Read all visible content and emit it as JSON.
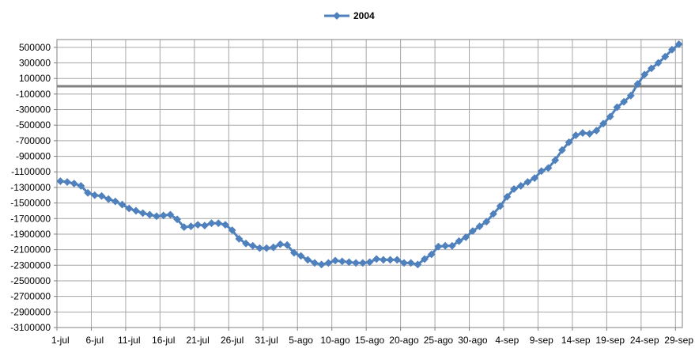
{
  "chart_data": {
    "type": "line",
    "title": "",
    "xlabel": "",
    "ylabel": "",
    "grid": true,
    "legend": "top-center",
    "ylim": [
      -3100000,
      600000
    ],
    "yticks": [
      500000,
      300000,
      100000,
      -100000,
      -300000,
      -500000,
      -700000,
      -900000,
      -1100000,
      -1300000,
      -1500000,
      -1700000,
      -1900000,
      -2100000,
      -2300000,
      -2500000,
      -2700000,
      -2900000,
      -3100000
    ],
    "x_tick_labels": [
      "1-jul",
      "6-jul",
      "11-jul",
      "16-jul",
      "21-jul",
      "26-jul",
      "31-jul",
      "5-ago",
      "10-ago",
      "15-ago",
      "20-ago",
      "25-ago",
      "30-ago",
      "4-sep",
      "9-sep",
      "14-sep",
      "19-sep",
      "24-sep",
      "29-sep"
    ],
    "x_tick_step": 5,
    "reference_line": {
      "y": 0,
      "color": "#808080"
    },
    "series": [
      {
        "name": "2004",
        "color": "#4F81BD",
        "marker": "diamond",
        "values": [
          -1220000,
          -1230000,
          -1250000,
          -1280000,
          -1370000,
          -1400000,
          -1410000,
          -1450000,
          -1480000,
          -1520000,
          -1570000,
          -1600000,
          -1630000,
          -1650000,
          -1670000,
          -1660000,
          -1650000,
          -1710000,
          -1810000,
          -1800000,
          -1780000,
          -1790000,
          -1760000,
          -1760000,
          -1780000,
          -1850000,
          -1960000,
          -2020000,
          -2050000,
          -2080000,
          -2080000,
          -2070000,
          -2030000,
          -2040000,
          -2140000,
          -2180000,
          -2230000,
          -2270000,
          -2290000,
          -2270000,
          -2240000,
          -2250000,
          -2260000,
          -2270000,
          -2270000,
          -2260000,
          -2220000,
          -2230000,
          -2230000,
          -2230000,
          -2270000,
          -2270000,
          -2290000,
          -2220000,
          -2160000,
          -2060000,
          -2050000,
          -2050000,
          -1990000,
          -1940000,
          -1860000,
          -1800000,
          -1740000,
          -1640000,
          -1540000,
          -1420000,
          -1320000,
          -1280000,
          -1230000,
          -1180000,
          -1090000,
          -1050000,
          -950000,
          -820000,
          -720000,
          -630000,
          -600000,
          -610000,
          -570000,
          -480000,
          -390000,
          -270000,
          -200000,
          -120000,
          30000,
          150000,
          230000,
          300000,
          380000,
          470000,
          540000
        ]
      }
    ]
  }
}
